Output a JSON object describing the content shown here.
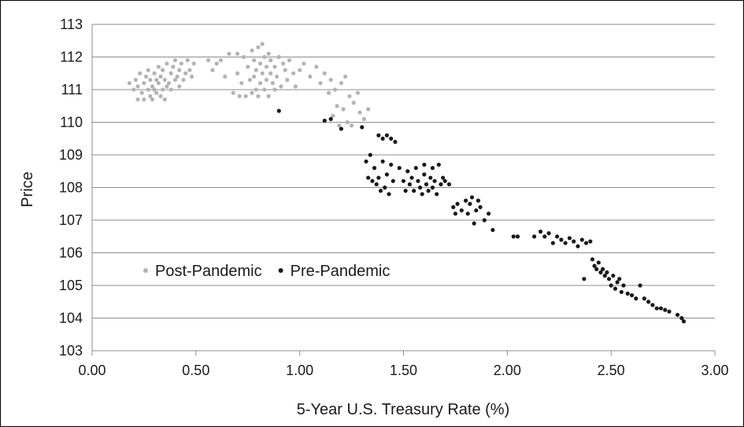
{
  "chart_data": {
    "type": "scatter",
    "title": "",
    "xlabel": "5-Year U.S. Treasury Rate (%)",
    "ylabel": "Price",
    "xlim": [
      0,
      3
    ],
    "ylim": [
      103,
      113
    ],
    "x_ticks": [
      "0.00",
      "0.50",
      "1.00",
      "1.50",
      "2.00",
      "2.50",
      "3.00"
    ],
    "y_ticks": [
      "103",
      "104",
      "105",
      "106",
      "107",
      "108",
      "109",
      "110",
      "111",
      "112",
      "113"
    ],
    "grid": "horizontal",
    "legend_position": "inside-left",
    "series": [
      {
        "name": "Post-Pandemic",
        "color": "#b3b3b3",
        "points": [
          [
            0.18,
            111.2
          ],
          [
            0.2,
            111.0
          ],
          [
            0.21,
            111.3
          ],
          [
            0.22,
            110.7
          ],
          [
            0.22,
            111.1
          ],
          [
            0.23,
            111.5
          ],
          [
            0.24,
            110.9
          ],
          [
            0.25,
            111.2
          ],
          [
            0.25,
            110.7
          ],
          [
            0.26,
            111.4
          ],
          [
            0.27,
            111.0
          ],
          [
            0.27,
            111.6
          ],
          [
            0.28,
            110.8
          ],
          [
            0.28,
            111.3
          ],
          [
            0.29,
            111.1
          ],
          [
            0.29,
            110.7
          ],
          [
            0.3,
            111.5
          ],
          [
            0.3,
            111.0
          ],
          [
            0.31,
            111.3
          ],
          [
            0.31,
            110.9
          ],
          [
            0.32,
            111.7
          ],
          [
            0.32,
            111.2
          ],
          [
            0.33,
            110.8
          ],
          [
            0.33,
            111.4
          ],
          [
            0.34,
            111.0
          ],
          [
            0.34,
            111.6
          ],
          [
            0.35,
            110.7
          ],
          [
            0.35,
            111.3
          ],
          [
            0.36,
            111.1
          ],
          [
            0.36,
            111.8
          ],
          [
            0.37,
            111.2
          ],
          [
            0.38,
            111.5
          ],
          [
            0.38,
            111.0
          ],
          [
            0.39,
            111.7
          ],
          [
            0.4,
            111.3
          ],
          [
            0.4,
            111.9
          ],
          [
            0.41,
            111.4
          ],
          [
            0.42,
            111.1
          ],
          [
            0.42,
            111.6
          ],
          [
            0.43,
            111.8
          ],
          [
            0.44,
            111.3
          ],
          [
            0.45,
            111.5
          ],
          [
            0.46,
            111.9
          ],
          [
            0.47,
            111.6
          ],
          [
            0.48,
            111.4
          ],
          [
            0.49,
            111.8
          ],
          [
            0.56,
            111.9
          ],
          [
            0.58,
            111.6
          ],
          [
            0.6,
            111.8
          ],
          [
            0.62,
            111.9
          ],
          [
            0.64,
            111.4
          ],
          [
            0.66,
            112.1
          ],
          [
            0.68,
            110.9
          ],
          [
            0.7,
            111.5
          ],
          [
            0.7,
            112.1
          ],
          [
            0.71,
            110.8
          ],
          [
            0.72,
            111.2
          ],
          [
            0.73,
            112.0
          ],
          [
            0.74,
            110.8
          ],
          [
            0.75,
            111.7
          ],
          [
            0.76,
            111.3
          ],
          [
            0.77,
            110.9
          ],
          [
            0.77,
            112.2
          ],
          [
            0.78,
            111.4
          ],
          [
            0.78,
            111.9
          ],
          [
            0.79,
            111.0
          ],
          [
            0.79,
            111.6
          ],
          [
            0.8,
            112.3
          ],
          [
            0.8,
            110.8
          ],
          [
            0.81,
            111.2
          ],
          [
            0.81,
            111.8
          ],
          [
            0.82,
            112.4
          ],
          [
            0.82,
            111.5
          ],
          [
            0.83,
            111.0
          ],
          [
            0.83,
            112.0
          ],
          [
            0.84,
            111.3
          ],
          [
            0.84,
            111.7
          ],
          [
            0.85,
            112.1
          ],
          [
            0.85,
            110.8
          ],
          [
            0.86,
            111.5
          ],
          [
            0.86,
            111.9
          ],
          [
            0.87,
            111.2
          ],
          [
            0.88,
            111.7
          ],
          [
            0.88,
            111.0
          ],
          [
            0.89,
            111.4
          ],
          [
            0.9,
            112.0
          ],
          [
            0.91,
            111.1
          ],
          [
            0.92,
            111.8
          ],
          [
            0.93,
            111.6
          ],
          [
            0.94,
            111.3
          ],
          [
            0.95,
            111.9
          ],
          [
            0.97,
            111.5
          ],
          [
            0.98,
            111.1
          ],
          [
            1.0,
            111.6
          ],
          [
            1.02,
            111.8
          ],
          [
            1.05,
            111.4
          ],
          [
            1.08,
            111.7
          ],
          [
            1.1,
            111.2
          ],
          [
            1.12,
            111.5
          ],
          [
            1.14,
            110.9
          ],
          [
            1.15,
            111.3
          ],
          [
            1.16,
            110.2
          ],
          [
            1.17,
            111.0
          ],
          [
            1.18,
            110.5
          ],
          [
            1.19,
            109.9
          ],
          [
            1.2,
            111.2
          ],
          [
            1.21,
            110.4
          ],
          [
            1.22,
            111.4
          ],
          [
            1.23,
            110.0
          ],
          [
            1.24,
            110.8
          ],
          [
            1.25,
            109.9
          ],
          [
            1.26,
            110.6
          ],
          [
            1.28,
            110.9
          ],
          [
            1.29,
            110.3
          ],
          [
            1.31,
            110.1
          ],
          [
            1.33,
            110.4
          ]
        ]
      },
      {
        "name": "Pre-Pandemic",
        "color": "#1a1a1a",
        "points": [
          [
            0.9,
            110.35
          ],
          [
            1.12,
            110.05
          ],
          [
            1.15,
            110.1
          ],
          [
            1.2,
            109.8
          ],
          [
            1.3,
            109.85
          ],
          [
            1.32,
            108.8
          ],
          [
            1.33,
            108.3
          ],
          [
            1.34,
            109.0
          ],
          [
            1.35,
            108.2
          ],
          [
            1.36,
            108.6
          ],
          [
            1.37,
            108.1
          ],
          [
            1.38,
            109.6
          ],
          [
            1.38,
            108.3
          ],
          [
            1.39,
            107.9
          ],
          [
            1.4,
            108.8
          ],
          [
            1.4,
            109.5
          ],
          [
            1.41,
            108.0
          ],
          [
            1.42,
            109.6
          ],
          [
            1.42,
            108.4
          ],
          [
            1.43,
            107.8
          ],
          [
            1.44,
            108.7
          ],
          [
            1.44,
            109.5
          ],
          [
            1.45,
            108.2
          ],
          [
            1.46,
            109.4
          ],
          [
            1.48,
            108.6
          ],
          [
            1.5,
            108.2
          ],
          [
            1.51,
            107.9
          ],
          [
            1.52,
            108.5
          ],
          [
            1.53,
            108.1
          ],
          [
            1.54,
            108.3
          ],
          [
            1.55,
            107.9
          ],
          [
            1.56,
            108.6
          ],
          [
            1.57,
            108.2
          ],
          [
            1.58,
            108.0
          ],
          [
            1.59,
            107.8
          ],
          [
            1.6,
            108.4
          ],
          [
            1.6,
            108.7
          ],
          [
            1.61,
            108.1
          ],
          [
            1.62,
            107.9
          ],
          [
            1.63,
            108.3
          ],
          [
            1.64,
            108.6
          ],
          [
            1.64,
            108.0
          ],
          [
            1.65,
            108.2
          ],
          [
            1.66,
            107.8
          ],
          [
            1.67,
            108.7
          ],
          [
            1.68,
            108.1
          ],
          [
            1.69,
            108.3
          ],
          [
            1.7,
            108.2
          ],
          [
            1.72,
            108.1
          ],
          [
            1.74,
            107.4
          ],
          [
            1.75,
            107.2
          ],
          [
            1.76,
            107.5
          ],
          [
            1.78,
            107.3
          ],
          [
            1.8,
            107.6
          ],
          [
            1.81,
            107.2
          ],
          [
            1.82,
            107.5
          ],
          [
            1.83,
            107.7
          ],
          [
            1.84,
            106.9
          ],
          [
            1.85,
            107.3
          ],
          [
            1.86,
            107.6
          ],
          [
            1.87,
            107.4
          ],
          [
            1.89,
            107.0
          ],
          [
            1.91,
            107.2
          ],
          [
            1.93,
            106.7
          ],
          [
            2.03,
            106.5
          ],
          [
            2.05,
            106.5
          ],
          [
            2.13,
            106.5
          ],
          [
            2.16,
            106.65
          ],
          [
            2.18,
            106.5
          ],
          [
            2.2,
            106.6
          ],
          [
            2.22,
            106.3
          ],
          [
            2.24,
            106.5
          ],
          [
            2.26,
            106.4
          ],
          [
            2.28,
            106.3
          ],
          [
            2.3,
            106.45
          ],
          [
            2.32,
            106.35
          ],
          [
            2.34,
            106.2
          ],
          [
            2.36,
            106.4
          ],
          [
            2.38,
            106.3
          ],
          [
            2.4,
            106.35
          ],
          [
            2.41,
            105.8
          ],
          [
            2.42,
            105.6
          ],
          [
            2.43,
            105.5
          ],
          [
            2.44,
            105.7
          ],
          [
            2.45,
            105.4
          ],
          [
            2.46,
            105.5
          ],
          [
            2.47,
            105.3
          ],
          [
            2.48,
            105.4
          ],
          [
            2.49,
            105.2
          ],
          [
            2.5,
            105.0
          ],
          [
            2.51,
            105.3
          ],
          [
            2.52,
            104.9
          ],
          [
            2.53,
            105.1
          ],
          [
            2.54,
            105.2
          ],
          [
            2.55,
            104.8
          ],
          [
            2.56,
            105.0
          ],
          [
            2.58,
            104.75
          ],
          [
            2.6,
            104.7
          ],
          [
            2.62,
            104.6
          ],
          [
            2.64,
            105.0
          ],
          [
            2.66,
            104.6
          ],
          [
            2.68,
            104.5
          ],
          [
            2.7,
            104.4
          ],
          [
            2.72,
            104.3
          ],
          [
            2.74,
            104.3
          ],
          [
            2.76,
            104.25
          ],
          [
            2.78,
            104.2
          ],
          [
            2.82,
            104.1
          ],
          [
            2.84,
            104.0
          ],
          [
            2.85,
            103.9
          ],
          [
            2.37,
            105.2
          ]
        ]
      }
    ]
  }
}
